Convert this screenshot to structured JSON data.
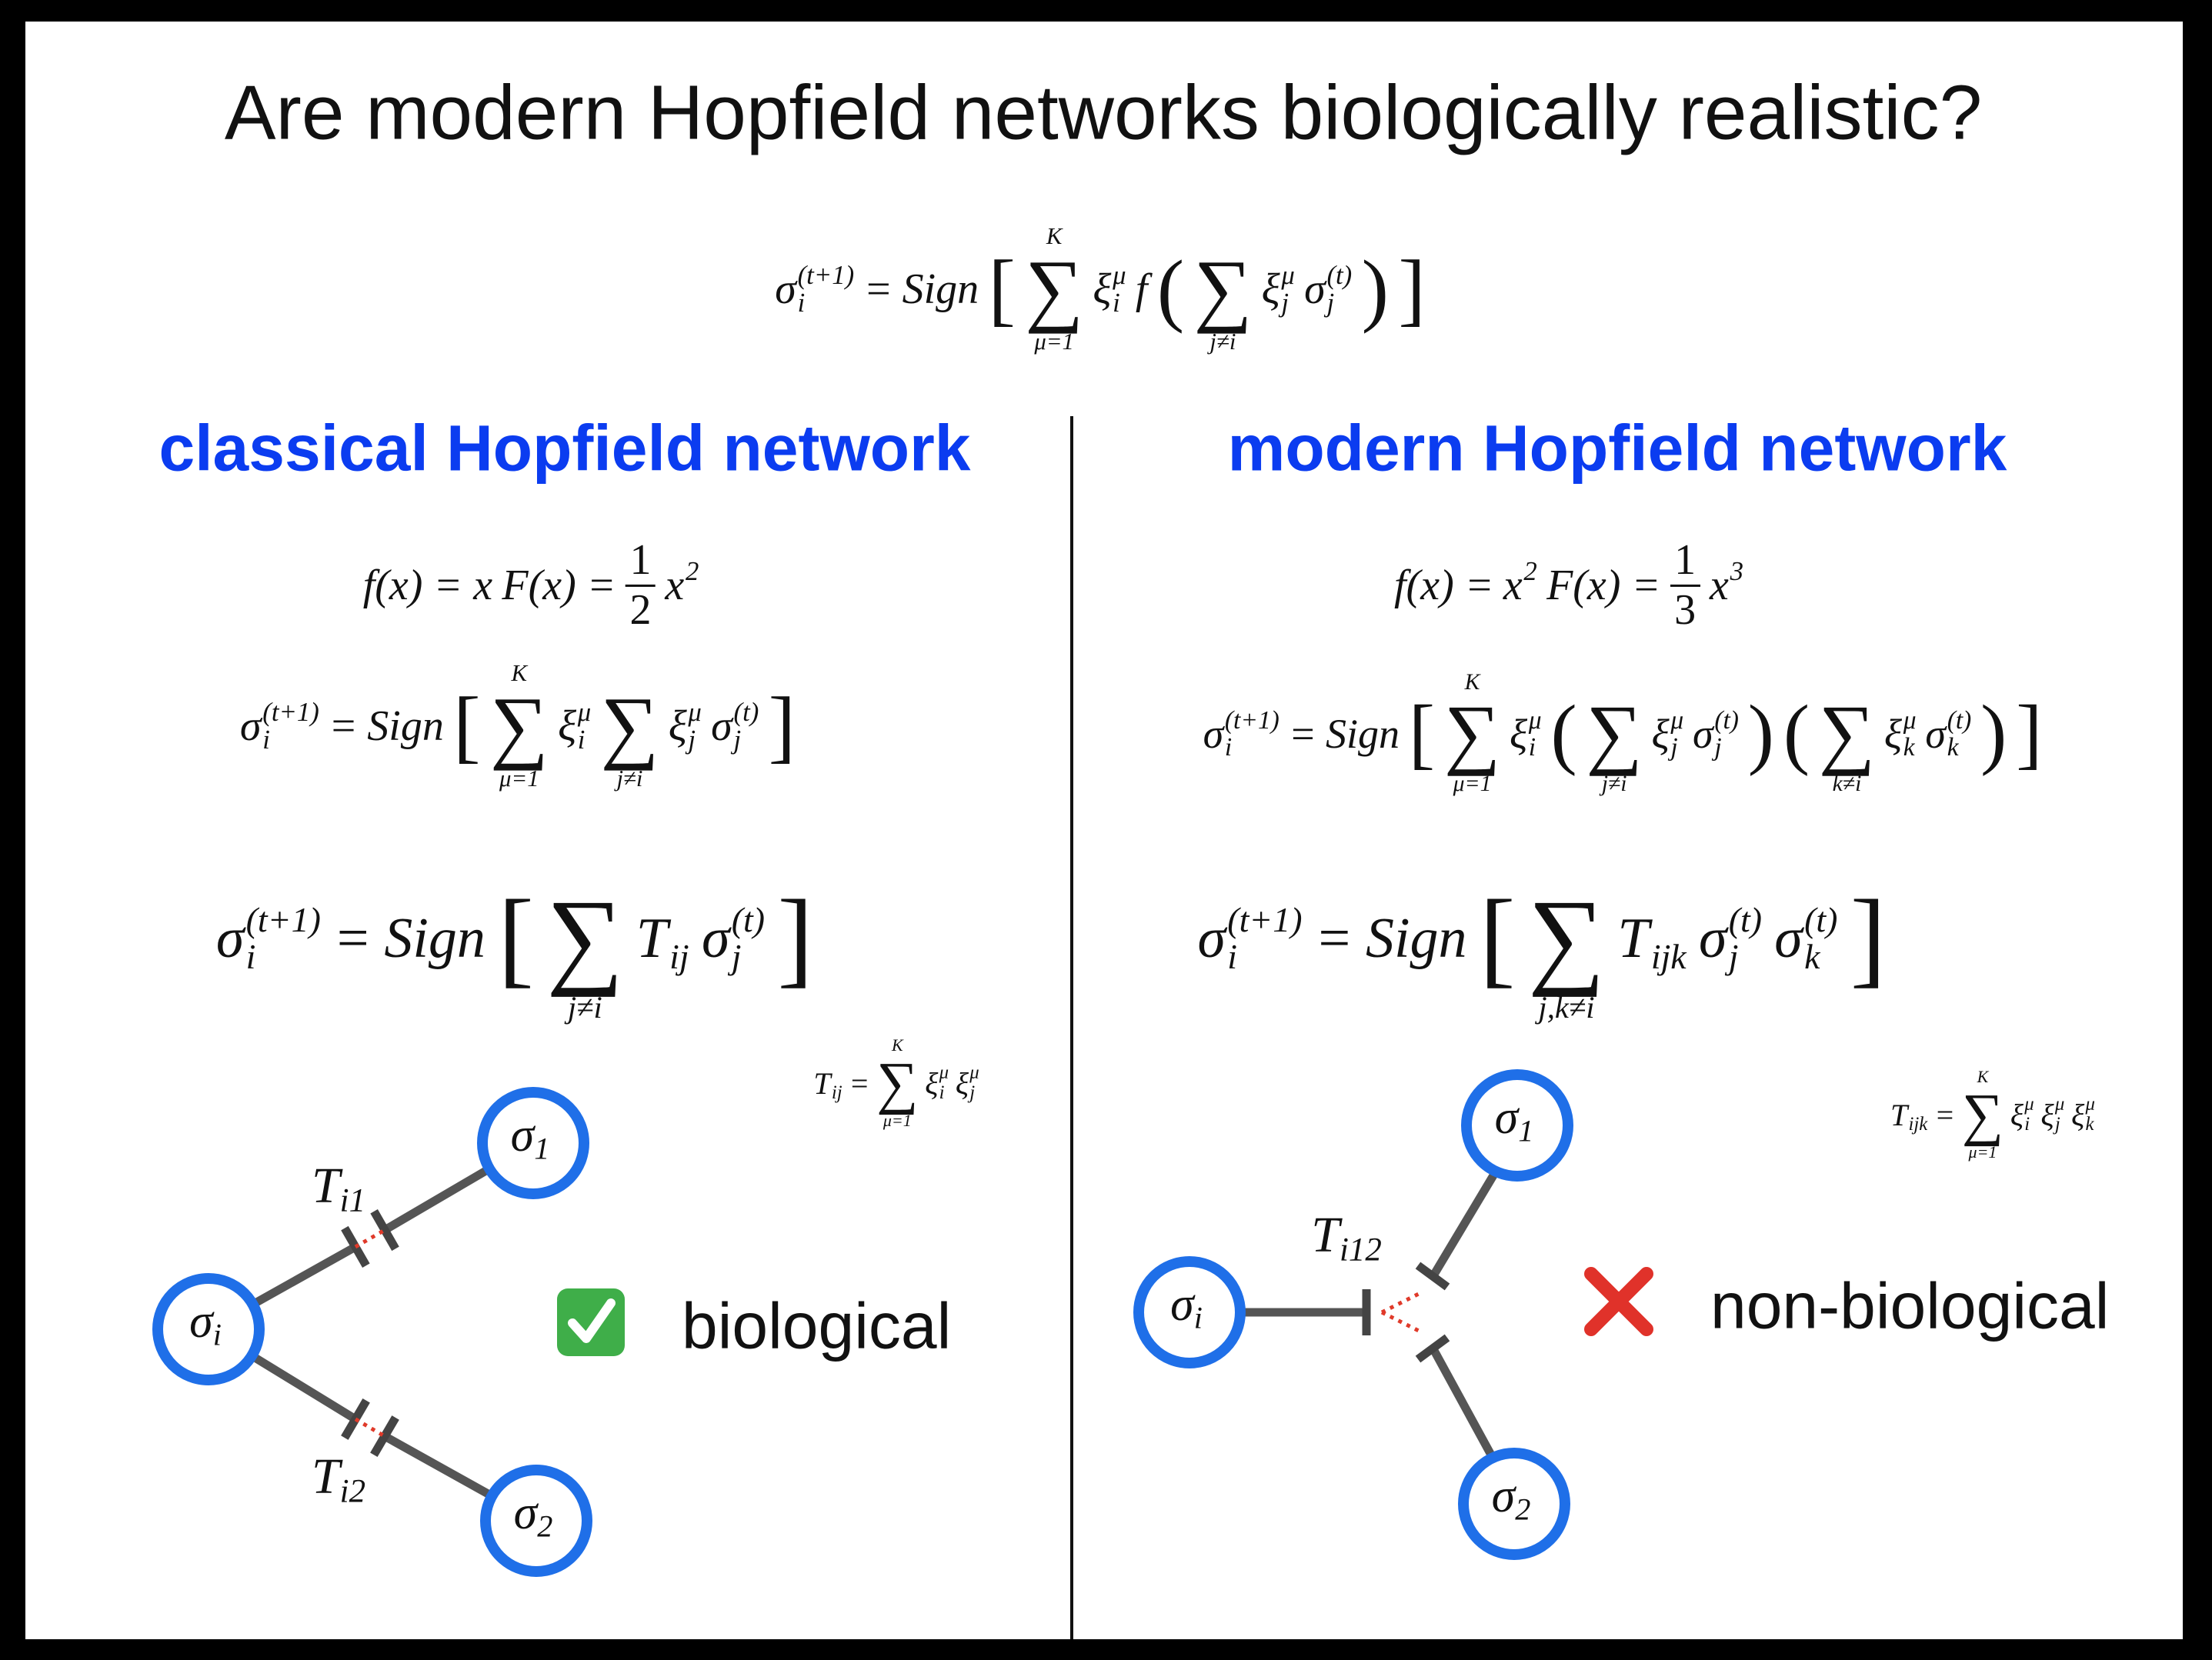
{
  "header": {
    "title": "Are modern Hopfield networks biologically realistic?"
  },
  "equations": {
    "top": [
      {
        "base": "σ",
        "sub": "i",
        "sup": "(t+1)"
      },
      "=",
      {
        "op": "Sign"
      },
      "[",
      {
        "op": "∑",
        "over": "K",
        "under": "μ=1"
      },
      {
        "base": "ξ",
        "sub": "i",
        "sup": "μ"
      },
      "f",
      "(",
      {
        "op": "∑",
        "under": "j≠i"
      },
      {
        "base": "ξ",
        "sub": "j",
        "sup": "μ"
      },
      {
        "base": "σ",
        "sub": "j",
        "sup": "(t)"
      },
      ")",
      "]"
    ],
    "left_f": [
      "f(x) = x",
      "F(x) =",
      {
        "num": "1",
        "den": "2"
      },
      {
        "base": "x",
        "sup": "2"
      }
    ],
    "left_sign": [
      {
        "base": "σ",
        "sub": "i",
        "sup": "(t+1)"
      },
      "=",
      {
        "op": "Sign"
      },
      "[",
      {
        "op": "∑",
        "over": "K",
        "under": "μ=1"
      },
      {
        "base": "ξ",
        "sub": "i",
        "sup": "μ"
      },
      {
        "op": "∑",
        "under": "j≠i"
      },
      {
        "base": "ξ",
        "sub": "j",
        "sup": "μ"
      },
      {
        "base": "σ",
        "sub": "j",
        "sup": "(t)"
      },
      "]"
    ],
    "left_big": [
      {
        "base": "σ",
        "sub": "i",
        "sup": "(t+1)"
      },
      "=",
      {
        "op": "Sign"
      },
      "[",
      {
        "op": "∑",
        "under": "j≠i"
      },
      {
        "base": "T",
        "sub": "ij"
      },
      {
        "base": "σ",
        "sub": "j",
        "sup": "(t)"
      },
      "]"
    ],
    "left_def": [
      {
        "base": "T",
        "sub": "ij"
      },
      "=",
      {
        "op": "∑",
        "over": "K",
        "under": "μ=1"
      },
      {
        "base": "ξ",
        "sub": "i",
        "sup": "μ"
      },
      {
        "base": "ξ",
        "sub": "j",
        "sup": "μ"
      }
    ],
    "right_f": [
      "f(x) =",
      {
        "base": "x",
        "sup": "2"
      },
      "F(x) =",
      {
        "num": "1",
        "den": "3"
      },
      {
        "base": "x",
        "sup": "3"
      }
    ],
    "right_sign": [
      {
        "base": "σ",
        "sub": "i",
        "sup": "(t+1)"
      },
      "=",
      {
        "op": "Sign"
      },
      "[",
      {
        "op": "∑",
        "over": "K",
        "under": "μ=1"
      },
      {
        "base": "ξ",
        "sub": "i",
        "sup": "μ"
      },
      "(",
      {
        "op": "∑",
        "under": "j≠i"
      },
      {
        "base": "ξ",
        "sub": "j",
        "sup": "μ"
      },
      {
        "base": "σ",
        "sub": "j",
        "sup": "(t)"
      },
      ")",
      "(",
      {
        "op": "∑",
        "under": "k≠i"
      },
      {
        "base": "ξ",
        "sub": "k",
        "sup": "μ"
      },
      {
        "base": "σ",
        "sub": "k",
        "sup": "(t)"
      },
      ")",
      "]"
    ],
    "right_big": [
      {
        "base": "σ",
        "sub": "i",
        "sup": "(t+1)"
      },
      "=",
      {
        "op": "Sign"
      },
      "[",
      {
        "op": "∑",
        "under": "j,k≠i"
      },
      {
        "base": "T",
        "sub": "ijk"
      },
      {
        "base": "σ",
        "sub": "j",
        "sup": "(t)"
      },
      {
        "base": "σ",
        "sub": "k",
        "sup": "(t)"
      },
      "]"
    ],
    "right_def": [
      {
        "base": "T",
        "sub": "ijk"
      },
      "=",
      {
        "op": "∑",
        "over": "K",
        "under": "μ=1"
      },
      {
        "base": "ξ",
        "sub": "i",
        "sup": "μ"
      },
      {
        "base": "ξ",
        "sub": "j",
        "sup": "μ"
      },
      {
        "base": "ξ",
        "sub": "k",
        "sup": "μ"
      }
    ]
  },
  "left": {
    "heading": "classical Hopfield network",
    "label": "biological",
    "nodes": [
      {
        "base": "σ",
        "sub": "i"
      },
      {
        "base": "σ",
        "sub": "1"
      },
      {
        "base": "σ",
        "sub": "2"
      }
    ],
    "weights": [
      {
        "base": "T",
        "sub": "i1"
      },
      {
        "base": "T",
        "sub": "i2"
      }
    ]
  },
  "right": {
    "heading": "modern Hopfield network",
    "label": "non-biological",
    "nodes": [
      {
        "base": "σ",
        "sub": "i"
      },
      {
        "base": "σ",
        "sub": "1"
      },
      {
        "base": "σ",
        "sub": "2"
      }
    ],
    "weights": [
      {
        "base": "T",
        "sub": "i12"
      }
    ]
  }
}
